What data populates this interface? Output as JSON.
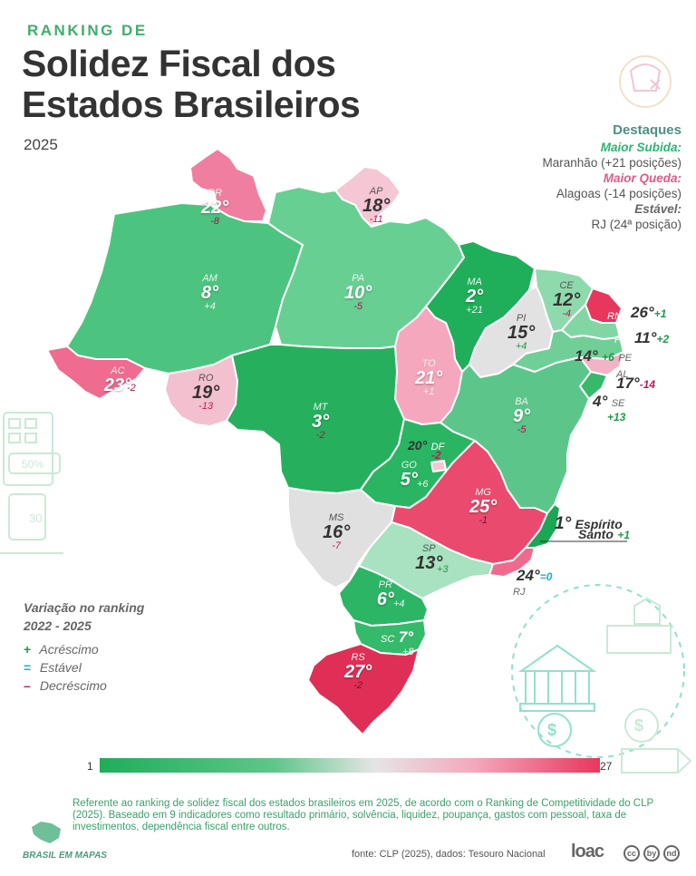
{
  "header": {
    "kicker": "RANKING DE",
    "title_line1": "Solidez Fiscal dos",
    "title_line2": "Estados Brasileiros",
    "year": "2025"
  },
  "highlights": {
    "title": "Destaques",
    "max_rise_label": "Maior Subida:",
    "max_rise_value": "Maranhão (+21 posições)",
    "max_drop_label": "Maior Queda:",
    "max_drop_value": "Alagoas (-14 posições)",
    "stable_label": "Estável:",
    "stable_value": "RJ (24ª posição)",
    "rise_color": "#2bb673",
    "drop_color": "#e05a86",
    "stable_color": "#666666"
  },
  "states": [
    {
      "abbr": "RR",
      "rank": "22°",
      "change": "-8"
    },
    {
      "abbr": "AP",
      "rank": "18°",
      "change": "-11"
    },
    {
      "abbr": "AM",
      "rank": "8°",
      "change": "+4"
    },
    {
      "abbr": "PA",
      "rank": "10°",
      "change": "-5"
    },
    {
      "abbr": "MA",
      "rank": "2°",
      "change": "+21"
    },
    {
      "abbr": "CE",
      "rank": "12°",
      "change": "-4"
    },
    {
      "abbr": "RN",
      "rank": "26°",
      "change": "+1"
    },
    {
      "abbr": "PB",
      "rank": "11°",
      "change": "+2"
    },
    {
      "abbr": "PI",
      "rank": "15°",
      "change": "+4"
    },
    {
      "abbr": "PE",
      "rank": "14°",
      "change": "+6"
    },
    {
      "abbr": "AL",
      "rank": "17°",
      "change": "-14"
    },
    {
      "abbr": "SE",
      "rank": "4°",
      "change": "+13"
    },
    {
      "abbr": "AC",
      "rank": "23°",
      "change": "-2"
    },
    {
      "abbr": "RO",
      "rank": "19°",
      "change": "-13"
    },
    {
      "abbr": "TO",
      "rank": "21°",
      "change": "+1"
    },
    {
      "abbr": "BA",
      "rank": "9°",
      "change": "-5"
    },
    {
      "abbr": "MT",
      "rank": "3°",
      "change": "-2"
    },
    {
      "abbr": "DF",
      "rank": "20°",
      "change": "-2"
    },
    {
      "abbr": "GO",
      "rank": "5°",
      "change": "+6"
    },
    {
      "abbr": "MG",
      "rank": "25°",
      "change": "-1"
    },
    {
      "abbr": "ES",
      "rank": "1°",
      "change": "+1",
      "name_line1": "Espírito",
      "name_line2": "Santo"
    },
    {
      "abbr": "MS",
      "rank": "16°",
      "change": "-7"
    },
    {
      "abbr": "SP",
      "rank": "13°",
      "change": "+3"
    },
    {
      "abbr": "RJ",
      "rank": "24°",
      "change": "=0"
    },
    {
      "abbr": "PR",
      "rank": "6°",
      "change": "+4"
    },
    {
      "abbr": "SC",
      "rank": "7°",
      "change": "+8"
    },
    {
      "abbr": "RS",
      "rank": "27°",
      "change": "-2"
    }
  ],
  "legend": {
    "title_line1": "Variação no ranking",
    "title_line2": "2022 - 2025",
    "items": [
      {
        "symbol": "+",
        "label": "Acréscimo",
        "color": "#1e9a48"
      },
      {
        "symbol": "=",
        "label": "Estável",
        "color": "#1ab3c4"
      },
      {
        "symbol": "–",
        "label": "Decréscimo",
        "color": "#c2185b"
      }
    ]
  },
  "scale": {
    "min_label": "1",
    "max_label": "27",
    "color_best": "#1fae5a",
    "color_mid": "#e5e5e5",
    "color_worst": "#e8375c"
  },
  "footnote": "Referente ao ranking de solidez fiscal dos estados brasileiros em 2025, de acordo com o Ranking de Competitividade do CLP (2025). Baseado em 9 indicadores como resultado primário, solvência, liquidez, poupança, gastos com pessoal, taxa de investimentos, dependência fiscal entre outros.",
  "source": "fonte: CLP (2025), dados: Tesouro Nacional",
  "brand": "BRASIL EM MAPAS",
  "logo": "loac",
  "license_icons": [
    "cc",
    "by",
    "nd"
  ]
}
